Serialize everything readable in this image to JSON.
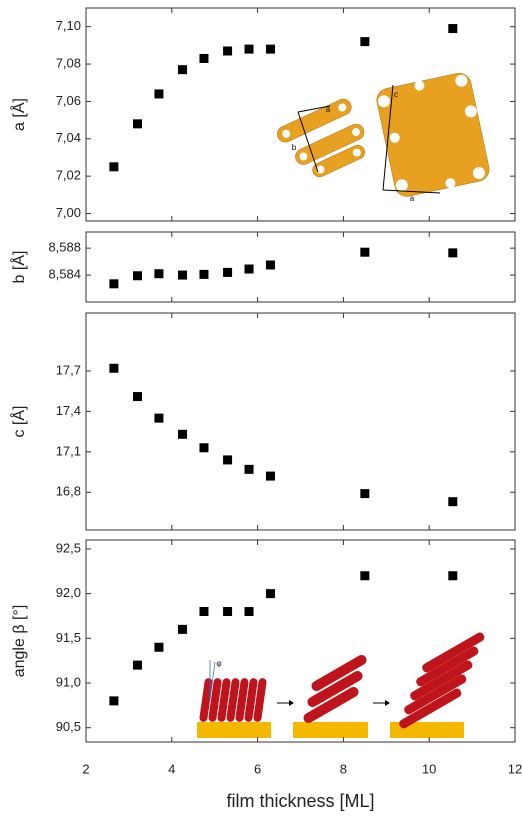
{
  "chart_data": [
    {
      "type": "scatter",
      "ylabel": "a [Å]",
      "marker": "square",
      "color": "#000000",
      "x": [
        2.65,
        3.2,
        3.7,
        4.25,
        4.75,
        5.3,
        5.8,
        6.3,
        8.5,
        10.55
      ],
      "values": [
        7.025,
        7.048,
        7.064,
        7.077,
        7.083,
        7.087,
        7.088,
        7.088,
        7.092,
        7.099
      ],
      "xlim": [
        2,
        12
      ],
      "ylim": [
        6.996,
        7.11
      ],
      "yticks": [
        {
          "value": 7.0,
          "label": "7,00"
        },
        {
          "value": 7.02,
          "label": "7,02"
        },
        {
          "value": 7.04,
          "label": "7,04"
        },
        {
          "value": 7.06,
          "label": "7,06"
        },
        {
          "value": 7.08,
          "label": "7,08"
        },
        {
          "value": 7.1,
          "label": "7,10"
        }
      ],
      "annotations": [
        "a",
        "b",
        "c",
        "a"
      ]
    },
    {
      "type": "scatter",
      "ylabel": "b [Å]",
      "marker": "square",
      "color": "#000000",
      "x": [
        2.65,
        3.2,
        3.7,
        4.25,
        4.75,
        5.3,
        5.8,
        6.3,
        8.5,
        10.55
      ],
      "values": [
        8.5827,
        8.5839,
        8.5842,
        8.584,
        8.5841,
        8.5844,
        8.5849,
        8.5855,
        8.5874,
        8.5873
      ],
      "xlim": [
        2,
        12
      ],
      "ylim": [
        8.58,
        8.5904
      ],
      "yticks": [
        {
          "value": 8.584,
          "label": "8,584"
        },
        {
          "value": 8.588,
          "label": "8,588"
        }
      ]
    },
    {
      "type": "scatter",
      "ylabel": "c [Å]",
      "marker": "square",
      "color": "#000000",
      "x": [
        2.65,
        3.2,
        3.7,
        4.25,
        4.75,
        5.3,
        5.8,
        6.3,
        8.5,
        10.55
      ],
      "values": [
        17.72,
        17.51,
        17.35,
        17.23,
        17.13,
        17.04,
        16.97,
        16.92,
        16.79,
        16.73
      ],
      "xlim": [
        2,
        12
      ],
      "ylim": [
        16.52,
        18.13
      ],
      "yticks": [
        {
          "value": 16.8,
          "label": "16,8"
        },
        {
          "value": 17.1,
          "label": "17,1"
        },
        {
          "value": 17.4,
          "label": "17,4"
        },
        {
          "value": 17.7,
          "label": "17,7"
        }
      ]
    },
    {
      "type": "scatter",
      "ylabel": "angle β [°]",
      "xlabel": "film thickness [ML]",
      "marker": "square",
      "color": "#000000",
      "x": [
        2.65,
        3.2,
        3.7,
        4.25,
        4.75,
        5.3,
        5.8,
        6.3,
        8.5,
        10.55
      ],
      "values": [
        90.8,
        91.2,
        91.4,
        91.6,
        91.8,
        91.8,
        91.8,
        92.0,
        92.2,
        92.2
      ],
      "xlim": [
        2,
        12
      ],
      "ylim": [
        90.34,
        92.6
      ],
      "yticks": [
        {
          "value": 90.5,
          "label": "90,5"
        },
        {
          "value": 91.0,
          "label": "91,0"
        },
        {
          "value": 91.5,
          "label": "91,5"
        },
        {
          "value": 92.0,
          "label": "92,0"
        },
        {
          "value": 92.5,
          "label": "92,5"
        }
      ],
      "xticks": [
        2,
        4,
        6,
        8,
        10,
        12
      ],
      "annotations": [
        "φ"
      ]
    }
  ]
}
